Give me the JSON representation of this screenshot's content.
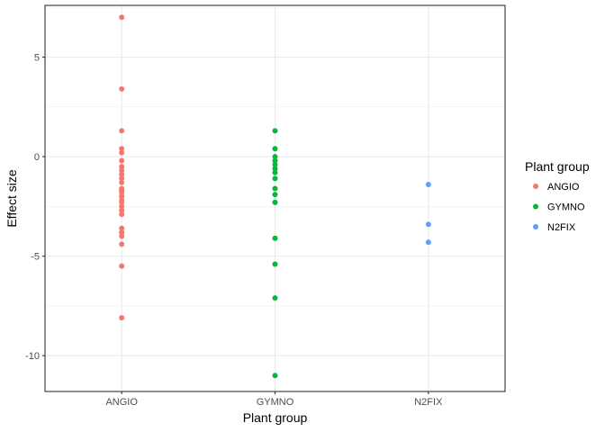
{
  "chart_data": {
    "type": "scatter",
    "xlabel": "Plant group",
    "ylabel": "Effect size",
    "categories": [
      "ANGIO",
      "GYMNO",
      "N2FIX"
    ],
    "ylim": [
      -11.8,
      7.6
    ],
    "yticks": [
      5,
      0,
      -5,
      -10
    ],
    "ytick_labels": [
      "5",
      "0",
      "-5",
      "-10"
    ],
    "grid": true,
    "legend": {
      "title": "Plant group",
      "position": "right",
      "entries": [
        "ANGIO",
        "GYMNO",
        "N2FIX"
      ]
    },
    "series": [
      {
        "name": "ANGIO",
        "color": "#F8766D",
        "category": "ANGIO",
        "values": [
          7.0,
          3.4,
          1.3,
          0.4,
          0.2,
          -0.2,
          -0.5,
          -0.7,
          -0.9,
          -1.1,
          -1.3,
          -1.6,
          -1.7,
          -1.8,
          -2.0,
          -2.2,
          -2.3,
          -2.5,
          -2.7,
          -2.9,
          -3.6,
          -3.8,
          -4.0,
          -4.4,
          -5.5,
          -8.1
        ]
      },
      {
        "name": "GYMNO",
        "color": "#00BA38",
        "category": "GYMNO",
        "values": [
          1.3,
          0.4,
          0.0,
          -0.2,
          -0.4,
          -0.6,
          -0.8,
          -1.1,
          -1.6,
          -1.9,
          -2.3,
          -4.1,
          -5.4,
          -7.1,
          -11.0
        ]
      },
      {
        "name": "N2FIX",
        "color": "#619CFF",
        "category": "N2FIX",
        "values": [
          -1.4,
          -3.4,
          -4.3
        ]
      }
    ]
  }
}
